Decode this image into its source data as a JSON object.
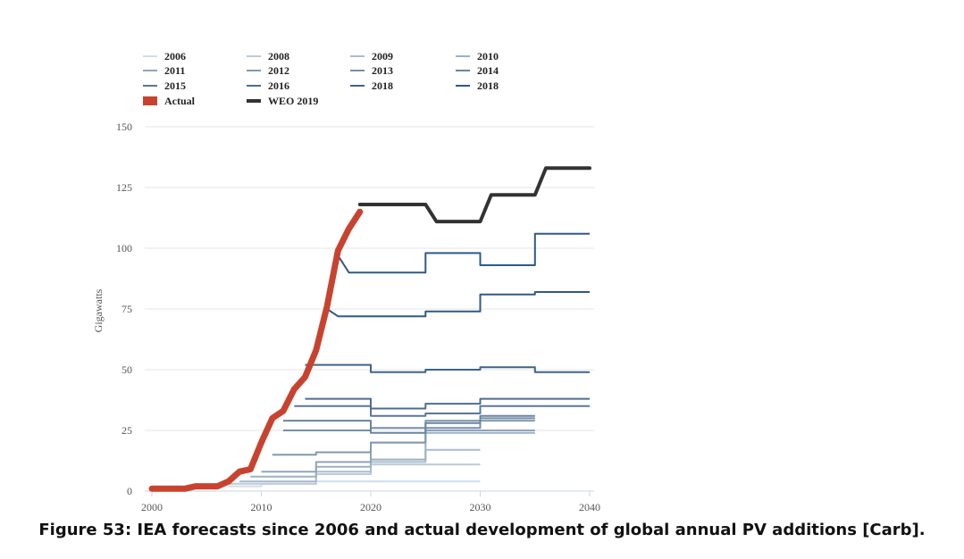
{
  "caption": "Figure 53: IEA forecasts since 2006 and actual development of global annual PV additions [Carb].",
  "colors": {
    "actual": "#c8432f",
    "weo": "#333333",
    "grid": "#e6e6e6",
    "axis": "#c8d4e3"
  },
  "chart_data": {
    "type": "line",
    "title": "",
    "xlabel": "",
    "ylabel": "Gigawatts",
    "xlim": [
      2000,
      2040
    ],
    "ylim": [
      0,
      150
    ],
    "x_ticks": [
      2000,
      2010,
      2020,
      2030,
      2040
    ],
    "x_tick_labels": [
      "2000",
      "2010",
      "2020",
      "2030",
      "2040"
    ],
    "y_ticks": [
      0,
      25,
      50,
      75,
      100,
      125,
      150
    ],
    "y_tick_labels": [
      "0",
      "25",
      "50",
      "75",
      "100",
      "125",
      "150"
    ],
    "grid": true,
    "legend_position": "top",
    "series": [
      {
        "name": "2006",
        "color": "#d3dde7",
        "width": 2,
        "legend": "line",
        "x": [
          2007,
          2010,
          2010,
          2015,
          2015,
          2030
        ],
        "y": [
          2,
          2,
          3,
          3,
          4,
          4
        ]
      },
      {
        "name": "2008",
        "color": "#bccad8",
        "width": 2,
        "legend": "line",
        "x": [
          2007,
          2015,
          2015,
          2020,
          2020,
          2030
        ],
        "y": [
          3,
          3,
          7,
          7,
          11,
          11
        ]
      },
      {
        "name": "2009",
        "color": "#a9bccd",
        "width": 2,
        "legend": "line",
        "x": [
          2008,
          2015,
          2015,
          2020,
          2020,
          2025,
          2025,
          2030
        ],
        "y": [
          4,
          4,
          8,
          8,
          12,
          12,
          17,
          17
        ]
      },
      {
        "name": "2010",
        "color": "#9bb0c4",
        "width": 2,
        "legend": "line",
        "x": [
          2009,
          2015,
          2015,
          2020,
          2020,
          2025,
          2025,
          2035
        ],
        "y": [
          6,
          6,
          10,
          10,
          13,
          13,
          24,
          24
        ]
      },
      {
        "name": "2011",
        "color": "#8fa5ba",
        "width": 2,
        "legend": "line",
        "x": [
          2010,
          2015,
          2015,
          2020,
          2020,
          2025,
          2025,
          2035
        ],
        "y": [
          8,
          8,
          12,
          12,
          20,
          20,
          25,
          25
        ]
      },
      {
        "name": "2012",
        "color": "#8299b0",
        "width": 2,
        "legend": "line",
        "x": [
          2011,
          2015,
          2015,
          2020,
          2020,
          2025,
          2025,
          2035
        ],
        "y": [
          15,
          15,
          16,
          16,
          20,
          20,
          29,
          29
        ]
      },
      {
        "name": "2013",
        "color": "#758ea7",
        "width": 2,
        "legend": "line",
        "x": [
          2012,
          2020,
          2020,
          2025,
          2025,
          2030,
          2030,
          2035
        ],
        "y": [
          25,
          25,
          26,
          26,
          26,
          26,
          30,
          30
        ]
      },
      {
        "name": "2014",
        "color": "#6a84a0",
        "width": 2,
        "legend": "line",
        "x": [
          2012,
          2020,
          2020,
          2025,
          2025,
          2030,
          2030,
          2035
        ],
        "y": [
          29,
          29,
          24,
          24,
          28,
          28,
          31,
          31
        ]
      },
      {
        "name": "2015",
        "color": "#5b7799",
        "width": 2,
        "legend": "line",
        "x": [
          2013,
          2020,
          2020,
          2025,
          2025,
          2030,
          2030,
          2040
        ],
        "y": [
          35,
          35,
          31,
          31,
          32,
          32,
          35,
          35
        ]
      },
      {
        "name": "2016",
        "color": "#4e6d91",
        "width": 2,
        "legend": "line",
        "x": [
          2014,
          2020,
          2020,
          2025,
          2025,
          2030,
          2030,
          2040
        ],
        "y": [
          38,
          38,
          34,
          34,
          36,
          36,
          38,
          38
        ]
      },
      {
        "name": "2018",
        "color": "#3e638a",
        "width": 2,
        "legend": "line",
        "x": [
          2014,
          2020,
          2020,
          2025,
          2025,
          2030,
          2030,
          2035,
          2035,
          2040
        ],
        "y": [
          52,
          52,
          49,
          49,
          50,
          50,
          51,
          51,
          49,
          49
        ]
      },
      {
        "name": "2018",
        "color": "#2e5a85",
        "width": 2,
        "legend": "line",
        "x": [
          2016,
          2017,
          2020,
          2025,
          2025,
          2030,
          2030,
          2035,
          2035,
          2040
        ],
        "y": [
          75,
          72,
          72,
          72,
          74,
          74,
          81,
          81,
          82,
          82
        ]
      },
      {
        "name": "Actual",
        "color": "#c8432f",
        "width": 7,
        "legend": "box",
        "x": [
          2000,
          2003,
          2004,
          2006,
          2007,
          2008,
          2009,
          2010,
          2011,
          2012,
          2013,
          2014,
          2015,
          2016,
          2017,
          2018,
          2019
        ],
        "y": [
          1,
          1,
          2,
          2,
          4,
          8,
          9,
          20,
          30,
          33,
          42,
          47,
          58,
          76,
          99,
          108,
          115
        ]
      },
      {
        "name": "WEO 2019",
        "color": "#333333",
        "width": 4,
        "legend": "line",
        "x": [
          2019,
          2020,
          2025,
          2026,
          2030,
          2031,
          2035,
          2036,
          2040
        ],
        "y": [
          118,
          118,
          118,
          111,
          111,
          122,
          122,
          133,
          133
        ]
      }
    ],
    "extra_lines": [
      {
        "name": "2018 upper",
        "color": "#2e5a85",
        "width": 2,
        "x": [
          2017,
          2018,
          2020,
          2025,
          2025,
          2030,
          2030,
          2035,
          2035,
          2040
        ],
        "y": [
          97,
          90,
          90,
          90,
          98,
          98,
          93,
          93,
          106,
          106
        ]
      }
    ]
  }
}
